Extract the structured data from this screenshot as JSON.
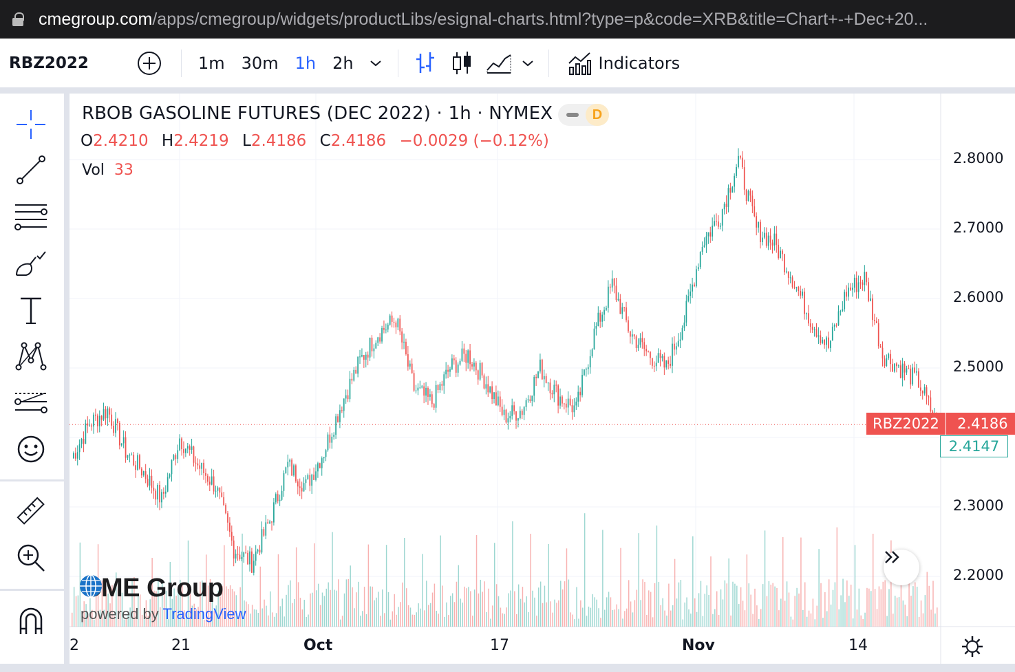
{
  "browser": {
    "url_domain": "cmegroup.com",
    "url_path": "/apps/cmegroup/widgets/productLibs/esignal-charts.html?type=p&code=XRB&title=Chart+-+Dec+20..."
  },
  "toolbar": {
    "symbol": "RBZ2022",
    "intervals": [
      "1m",
      "30m",
      "1h",
      "2h"
    ],
    "active_interval": "1h",
    "indicators_label": "Indicators"
  },
  "legend": {
    "title": "RBOB GASOLINE FUTURES (DEC 2022) · 1h · NYMEX",
    "d_badge": "D",
    "o_label": "O",
    "o_value": "2.4210",
    "h_label": "H",
    "h_value": "2.4219",
    "l_label": "L",
    "l_value": "2.4186",
    "c_label": "C",
    "c_value": "2.4186",
    "change": "−0.0029 (−0.12%)",
    "vol_label": "Vol",
    "vol_value": "33"
  },
  "price_axis": [
    "2.8000",
    "2.7000",
    "2.6000",
    "2.5000",
    "2.3000",
    "2.2000"
  ],
  "date_axis": [
    "2",
    "21",
    "Oct",
    "17",
    "Nov",
    "14"
  ],
  "last_price_tag": {
    "symbol": "RBZ2022",
    "price": "2.4186"
  },
  "bid_tag": "2.4147",
  "branding": {
    "logo_text": "CME Group",
    "powered_by": "powered by",
    "tradingview": "TradingView"
  },
  "colors": {
    "up": "#26a69a",
    "down": "#ef5350",
    "accent": "#2962ff"
  },
  "chart_data": {
    "type": "line",
    "title": "RBOB GASOLINE FUTURES (DEC 2022) · 1h · NYMEX",
    "series": [
      {
        "name": "RBZ2022",
        "points": [
          [
            "Sep 13",
            2.37
          ],
          [
            "Sep 14",
            2.42
          ],
          [
            "Sep 15",
            2.44
          ],
          [
            "Sep 16",
            2.38
          ],
          [
            "Sep 19",
            2.35
          ],
          [
            "Sep 20",
            2.31
          ],
          [
            "Sep 21",
            2.4
          ],
          [
            "Sep 22",
            2.36
          ],
          [
            "Sep 23",
            2.33
          ],
          [
            "Sep 26",
            2.24
          ],
          [
            "Sep 27",
            2.22
          ],
          [
            "Sep 28",
            2.28
          ],
          [
            "Sep 29",
            2.36
          ],
          [
            "Sep 30",
            2.33
          ],
          [
            "Oct 3",
            2.38
          ],
          [
            "Oct 4",
            2.45
          ],
          [
            "Oct 5",
            2.51
          ],
          [
            "Oct 6",
            2.55
          ],
          [
            "Oct 7",
            2.57
          ],
          [
            "Oct 10",
            2.47
          ],
          [
            "Oct 11",
            2.45
          ],
          [
            "Oct 12",
            2.5
          ],
          [
            "Oct 13",
            2.52
          ],
          [
            "Oct 14",
            2.48
          ],
          [
            "Oct 17",
            2.43
          ],
          [
            "Oct 18",
            2.44
          ],
          [
            "Oct 19",
            2.5
          ],
          [
            "Oct 20",
            2.46
          ],
          [
            "Oct 21",
            2.44
          ],
          [
            "Oct 24",
            2.55
          ],
          [
            "Oct 25",
            2.62
          ],
          [
            "Oct 26",
            2.55
          ],
          [
            "Oct 27",
            2.52
          ],
          [
            "Oct 28",
            2.5
          ],
          [
            "Oct 31",
            2.57
          ],
          [
            "Nov 1",
            2.68
          ],
          [
            "Nov 2",
            2.72
          ],
          [
            "Nov 3",
            2.8
          ],
          [
            "Nov 4",
            2.7
          ],
          [
            "Nov 7",
            2.68
          ],
          [
            "Nov 8",
            2.63
          ],
          [
            "Nov 9",
            2.57
          ],
          [
            "Nov 10",
            2.53
          ],
          [
            "Nov 11",
            2.61
          ],
          [
            "Nov 14",
            2.63
          ],
          [
            "Nov 15",
            2.52
          ],
          [
            "Nov 16",
            2.5
          ],
          [
            "Nov 17",
            2.48
          ],
          [
            "Nov 18",
            2.42
          ]
        ]
      }
    ],
    "ylim": [
      2.18,
      2.84
    ],
    "grid": true,
    "volume": true
  }
}
